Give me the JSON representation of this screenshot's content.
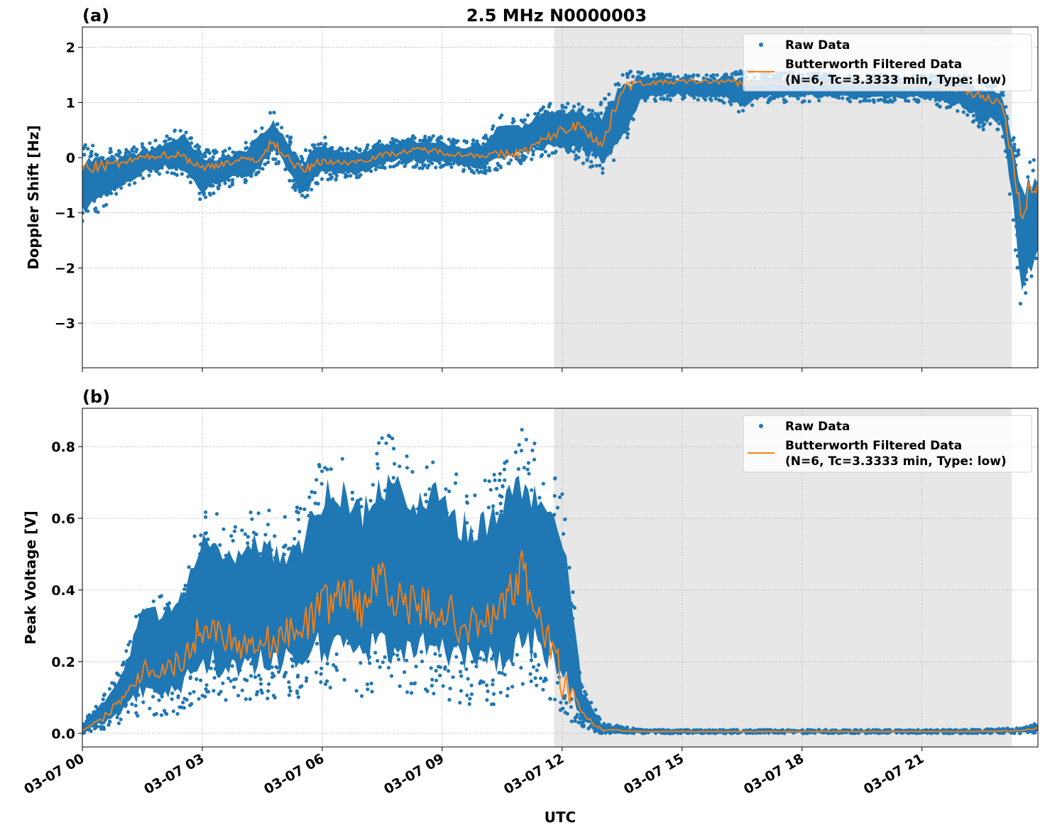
{
  "title": "2.5 MHz N0000003",
  "xlabel": "UTC",
  "colors": {
    "raw": "#1f77b4",
    "filtered": "#ff7f0e",
    "shade": "#e7e7e7",
    "grid": "#b0b0b0"
  },
  "x_ticks": [
    "03-07 00",
    "03-07 03",
    "03-07 06",
    "03-07 09",
    "03-07 12",
    "03-07 15",
    "03-07 18",
    "03-07 21"
  ],
  "chart_data": [
    {
      "type": "scatter",
      "panel_label": "(a)",
      "ylabel": "Doppler Shift [Hz]",
      "xlim": [
        "03-07 00:00",
        "03-07 23:54"
      ],
      "ylim": [
        -3.81,
        2.37
      ],
      "y_ticks": [
        "2",
        "1",
        "0",
        "−1",
        "−2",
        "−3"
      ],
      "y_tick_values": [
        2,
        1,
        0,
        -1,
        -2,
        -3
      ],
      "grid": true,
      "legend_placement": "top-right",
      "shaded_span": [
        "03-07 11:48",
        "03-07 23:15"
      ],
      "legend": {
        "raw": "Raw Data",
        "filtered_line1": "Butterworth Filtered Data",
        "filtered_line2": "(N=6, Tc=3.3333 min, Type: low)"
      },
      "series": [
        {
          "name": "Raw Data (envelope)",
          "x": [
            "03-07 00:00",
            "03-07 00:30",
            "03-07 01:00",
            "03-07 01:30",
            "03-07 02:00",
            "03-07 02:30",
            "03-07 03:00",
            "03-07 03:30",
            "03-07 04:00",
            "03-07 04:30",
            "03-07 04:45",
            "03-07 05:00",
            "03-07 05:30",
            "03-07 06:00",
            "03-07 06:30",
            "03-07 07:00",
            "03-07 07:30",
            "03-07 08:00",
            "03-07 08:30",
            "03-07 09:00",
            "03-07 09:30",
            "03-07 10:00",
            "03-07 10:30",
            "03-07 11:00",
            "03-07 11:30",
            "03-07 12:00",
            "03-07 12:30",
            "03-07 13:00",
            "03-07 13:30",
            "03-07 14:00",
            "03-07 15:00",
            "03-07 16:00",
            "03-07 16:30",
            "03-07 17:00",
            "03-07 18:00",
            "03-07 19:00",
            "03-07 20:00",
            "03-07 21:00",
            "03-07 22:00",
            "03-07 22:30",
            "03-07 23:00",
            "03-07 23:15",
            "03-07 23:30",
            "03-07 23:45",
            "03-07 23:54"
          ],
          "low": [
            -1.3,
            -0.9,
            -0.7,
            -0.4,
            -0.3,
            -0.4,
            -0.8,
            -0.55,
            -0.5,
            -0.3,
            -0.1,
            -0.2,
            -0.9,
            -0.4,
            -0.4,
            -0.4,
            -0.2,
            -0.15,
            -0.2,
            -0.2,
            -0.25,
            -0.3,
            -0.2,
            -0.1,
            0.0,
            0.0,
            -0.1,
            -0.3,
            0.0,
            1.0,
            1.05,
            1.0,
            0.8,
            1.0,
            1.0,
            1.0,
            1.0,
            1.0,
            0.8,
            0.5,
            0.5,
            -1.0,
            -3.0,
            -2.5,
            -2.0
          ],
          "high": [
            0.25,
            0.2,
            0.15,
            0.25,
            0.35,
            0.6,
            0.15,
            0.15,
            0.25,
            0.6,
            0.9,
            0.6,
            0.1,
            0.4,
            0.2,
            0.2,
            0.35,
            0.4,
            0.45,
            0.4,
            0.3,
            0.35,
            0.8,
            0.7,
            1.0,
            1.0,
            1.1,
            1.0,
            1.6,
            1.55,
            1.5,
            1.5,
            1.6,
            1.55,
            1.55,
            1.5,
            1.5,
            1.5,
            1.5,
            1.4,
            1.3,
            0.5,
            0.1,
            0.1,
            0.0
          ]
        },
        {
          "name": "Butterworth Filtered Data",
          "x": [
            "03-07 00:00",
            "03-07 00:30",
            "03-07 01:00",
            "03-07 01:30",
            "03-07 02:00",
            "03-07 02:30",
            "03-07 03:00",
            "03-07 03:30",
            "03-07 04:00",
            "03-07 04:30",
            "03-07 04:45",
            "03-07 05:00",
            "03-07 05:30",
            "03-07 06:00",
            "03-07 06:30",
            "03-07 07:00",
            "03-07 07:30",
            "03-07 08:00",
            "03-07 08:30",
            "03-07 09:00",
            "03-07 09:30",
            "03-07 10:00",
            "03-07 10:30",
            "03-07 11:00",
            "03-07 11:30",
            "03-07 12:00",
            "03-07 12:30",
            "03-07 13:00",
            "03-07 13:30",
            "03-07 14:00",
            "03-07 15:00",
            "03-07 16:00",
            "03-07 16:30",
            "03-07 17:00",
            "03-07 18:00",
            "03-07 19:00",
            "03-07 20:00",
            "03-07 21:00",
            "03-07 22:00",
            "03-07 22:30",
            "03-07 23:00",
            "03-07 23:15",
            "03-07 23:30",
            "03-07 23:45",
            "03-07 23:54"
          ],
          "y": [
            -0.2,
            -0.15,
            -0.1,
            0.0,
            0.05,
            0.05,
            -0.2,
            -0.1,
            -0.05,
            0.0,
            0.3,
            0.1,
            -0.25,
            -0.05,
            -0.1,
            -0.05,
            0.05,
            0.1,
            0.15,
            0.1,
            0.05,
            0.05,
            0.05,
            0.1,
            0.3,
            0.5,
            0.6,
            0.2,
            1.3,
            1.35,
            1.38,
            1.38,
            1.35,
            1.35,
            1.35,
            1.35,
            1.35,
            1.3,
            1.25,
            1.1,
            1.0,
            0.0,
            -1.0,
            -0.5,
            -0.6
          ]
        }
      ]
    },
    {
      "type": "scatter",
      "panel_label": "(b)",
      "ylabel": "Peak Voltage [V]",
      "xlim": [
        "03-07 00:00",
        "03-07 23:54"
      ],
      "ylim": [
        -0.038,
        0.907
      ],
      "y_ticks": [
        "0.0",
        "0.2",
        "0.4",
        "0.6",
        "0.8"
      ],
      "y_tick_values": [
        0,
        0.2,
        0.4,
        0.6,
        0.8
      ],
      "grid": true,
      "legend_placement": "top-right",
      "shaded_span": [
        "03-07 11:48",
        "03-07 23:15"
      ],
      "legend": {
        "raw": "Raw Data",
        "filtered_line1": "Butterworth Filtered Data",
        "filtered_line2": "(N=6, Tc=3.3333 min, Type: low)"
      },
      "series": [
        {
          "name": "Raw Data (envelope)",
          "x": [
            "03-07 00:00",
            "03-07 00:30",
            "03-07 01:00",
            "03-07 01:30",
            "03-07 02:00",
            "03-07 02:30",
            "03-07 03:00",
            "03-07 03:30",
            "03-07 04:00",
            "03-07 04:30",
            "03-07 05:00",
            "03-07 05:30",
            "03-07 06:00",
            "03-07 06:30",
            "03-07 07:00",
            "03-07 07:30",
            "03-07 08:00",
            "03-07 08:30",
            "03-07 09:00",
            "03-07 09:30",
            "03-07 10:00",
            "03-07 10:30",
            "03-07 11:00",
            "03-07 11:30",
            "03-07 12:00",
            "03-07 12:30",
            "03-07 13:00",
            "03-07 14:00",
            "03-07 16:00",
            "03-07 18:00",
            "03-07 20:00",
            "03-07 22:00",
            "03-07 23:30",
            "03-07 23:54"
          ],
          "low": [
            0,
            0.01,
            0.03,
            0.05,
            0.05,
            0.05,
            0.1,
            0.08,
            0.08,
            0.08,
            0.1,
            0.1,
            0.1,
            0.12,
            0.1,
            0.1,
            0.1,
            0.1,
            0.1,
            0.08,
            0.08,
            0.08,
            0.1,
            0.1,
            0.05,
            0.01,
            0,
            0,
            0,
            0,
            0,
            0,
            0,
            0
          ],
          "high": [
            0.03,
            0.1,
            0.2,
            0.4,
            0.4,
            0.45,
            0.65,
            0.6,
            0.6,
            0.65,
            0.6,
            0.65,
            0.8,
            0.8,
            0.75,
            0.85,
            0.8,
            0.78,
            0.8,
            0.7,
            0.7,
            0.75,
            0.85,
            0.8,
            0.7,
            0.15,
            0.03,
            0.01,
            0.01,
            0.01,
            0.01,
            0.01,
            0.015,
            0.03
          ]
        },
        {
          "name": "Butterworth Filtered Data",
          "x": [
            "03-07 00:00",
            "03-07 00:30",
            "03-07 01:00",
            "03-07 01:30",
            "03-07 02:00",
            "03-07 02:30",
            "03-07 03:00",
            "03-07 03:30",
            "03-07 04:00",
            "03-07 04:30",
            "03-07 05:00",
            "03-07 05:30",
            "03-07 06:00",
            "03-07 06:30",
            "03-07 07:00",
            "03-07 07:30",
            "03-07 08:00",
            "03-07 08:30",
            "03-07 09:00",
            "03-07 09:30",
            "03-07 10:00",
            "03-07 10:30",
            "03-07 11:00",
            "03-07 11:30",
            "03-07 12:00",
            "03-07 12:30",
            "03-07 13:00",
            "03-07 14:00",
            "03-07 16:00",
            "03-07 18:00",
            "03-07 20:00",
            "03-07 22:00",
            "03-07 23:30",
            "03-07 23:54"
          ],
          "y": [
            0.01,
            0.04,
            0.1,
            0.18,
            0.18,
            0.2,
            0.3,
            0.28,
            0.25,
            0.25,
            0.27,
            0.3,
            0.35,
            0.4,
            0.35,
            0.45,
            0.35,
            0.35,
            0.35,
            0.3,
            0.3,
            0.35,
            0.45,
            0.3,
            0.15,
            0.05,
            0.01,
            0.005,
            0.005,
            0.005,
            0.005,
            0.005,
            0.007,
            0.015
          ]
        }
      ]
    }
  ]
}
